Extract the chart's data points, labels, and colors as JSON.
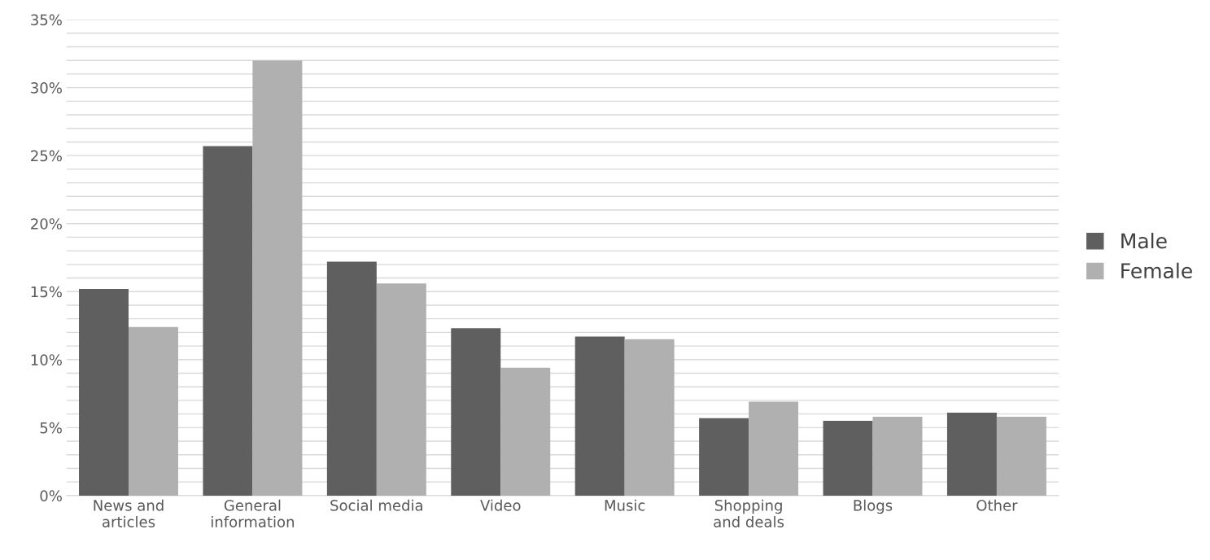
{
  "chart_data": {
    "type": "bar",
    "categories": [
      "News and\narticles",
      "General\ninformation",
      "Social media",
      "Video",
      "Music",
      "Shopping\nand deals",
      "Blogs",
      "Other"
    ],
    "series": [
      {
        "name": "Male",
        "color": "#5f5f5f",
        "values": [
          15.2,
          25.7,
          17.2,
          12.3,
          11.7,
          5.7,
          5.5,
          6.1
        ]
      },
      {
        "name": "Female",
        "color": "#b0b0b0",
        "values": [
          12.4,
          32.0,
          15.6,
          9.4,
          11.5,
          6.9,
          5.8,
          5.8
        ]
      }
    ],
    "ylim": [
      0,
      35
    ],
    "yticks": [
      {
        "value": 0,
        "label": "0%"
      },
      {
        "value": 1,
        "label": null
      },
      {
        "value": 2,
        "label": null
      },
      {
        "value": 3,
        "label": null
      },
      {
        "value": 4,
        "label": null
      },
      {
        "value": 5,
        "label": "5%"
      },
      {
        "value": 6,
        "label": null
      },
      {
        "value": 7,
        "label": null
      },
      {
        "value": 8,
        "label": null
      },
      {
        "value": 9,
        "label": null
      },
      {
        "value": 10,
        "label": "10%"
      },
      {
        "value": 11,
        "label": null
      },
      {
        "value": 12,
        "label": null
      },
      {
        "value": 13,
        "label": null
      },
      {
        "value": 14,
        "label": null
      },
      {
        "value": 15,
        "label": "15%"
      },
      {
        "value": 16,
        "label": null
      },
      {
        "value": 17,
        "label": null
      },
      {
        "value": 18,
        "label": null
      },
      {
        "value": 19,
        "label": null
      },
      {
        "value": 20,
        "label": "20%"
      },
      {
        "value": 21,
        "label": null
      },
      {
        "value": 22,
        "label": null
      },
      {
        "value": 23,
        "label": null
      },
      {
        "value": 24,
        "label": null
      },
      {
        "value": 25,
        "label": "25%"
      },
      {
        "value": 26,
        "label": null
      },
      {
        "value": 27,
        "label": null
      },
      {
        "value": 28,
        "label": null
      },
      {
        "value": 29,
        "label": null
      },
      {
        "value": 30,
        "label": "30%"
      },
      {
        "value": 31,
        "label": null
      },
      {
        "value": 32,
        "label": null
      },
      {
        "value": 33,
        "label": null
      },
      {
        "value": 34,
        "label": null
      },
      {
        "value": 35,
        "label": "35%"
      }
    ],
    "grid": "y",
    "legend": "right"
  }
}
